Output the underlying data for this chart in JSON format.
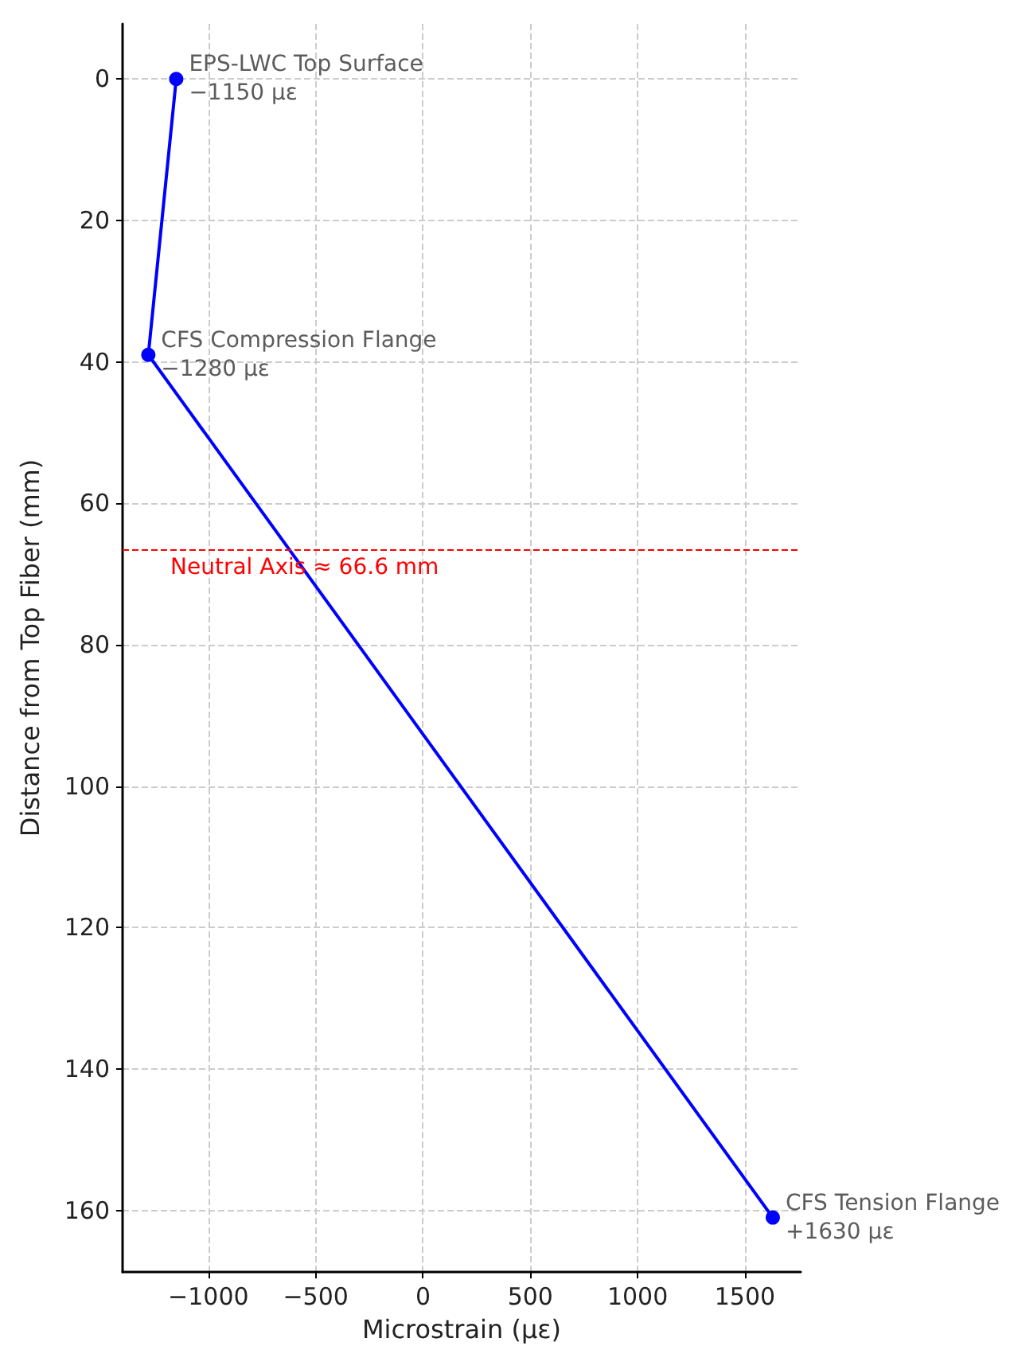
{
  "chart_data": {
    "type": "line",
    "xlabel": "Microstrain (με)",
    "ylabel": "Distance from Top Fiber (mm)",
    "series": [
      {
        "color": "#0000ff",
        "x": [
          -1150,
          -1280,
          1630
        ],
        "values": [
          0,
          39,
          161
        ]
      }
    ],
    "xlim": [
      -1400,
      1760
    ],
    "ylim": [
      168.7,
      -7.8
    ],
    "xticks": [
      {
        "value": -1000,
        "label": "−1000"
      },
      {
        "value": -500,
        "label": "−500"
      },
      0,
      500,
      1000,
      1500
    ],
    "yticks": [
      0,
      20,
      40,
      60,
      80,
      100,
      120,
      140,
      160
    ],
    "ref_lines": [
      {
        "axis": "y",
        "value": 66.6,
        "label": "Neutral Axis ≈ 66.6 mm",
        "color": "#ff0000",
        "line_style": "dashed"
      }
    ],
    "annotations": [
      {
        "text": "EPS-LWC Top Surface\n−1150 με",
        "x": -1150,
        "y": 0
      },
      {
        "text": "CFS Compression Flange\n−1280 με",
        "x": -1280,
        "y": 39
      },
      {
        "text": "CFS Tension Flange\n+1630 με",
        "x": 1630,
        "y": 161
      }
    ],
    "grid": true,
    "marker": "circle",
    "line_style": "solid"
  }
}
